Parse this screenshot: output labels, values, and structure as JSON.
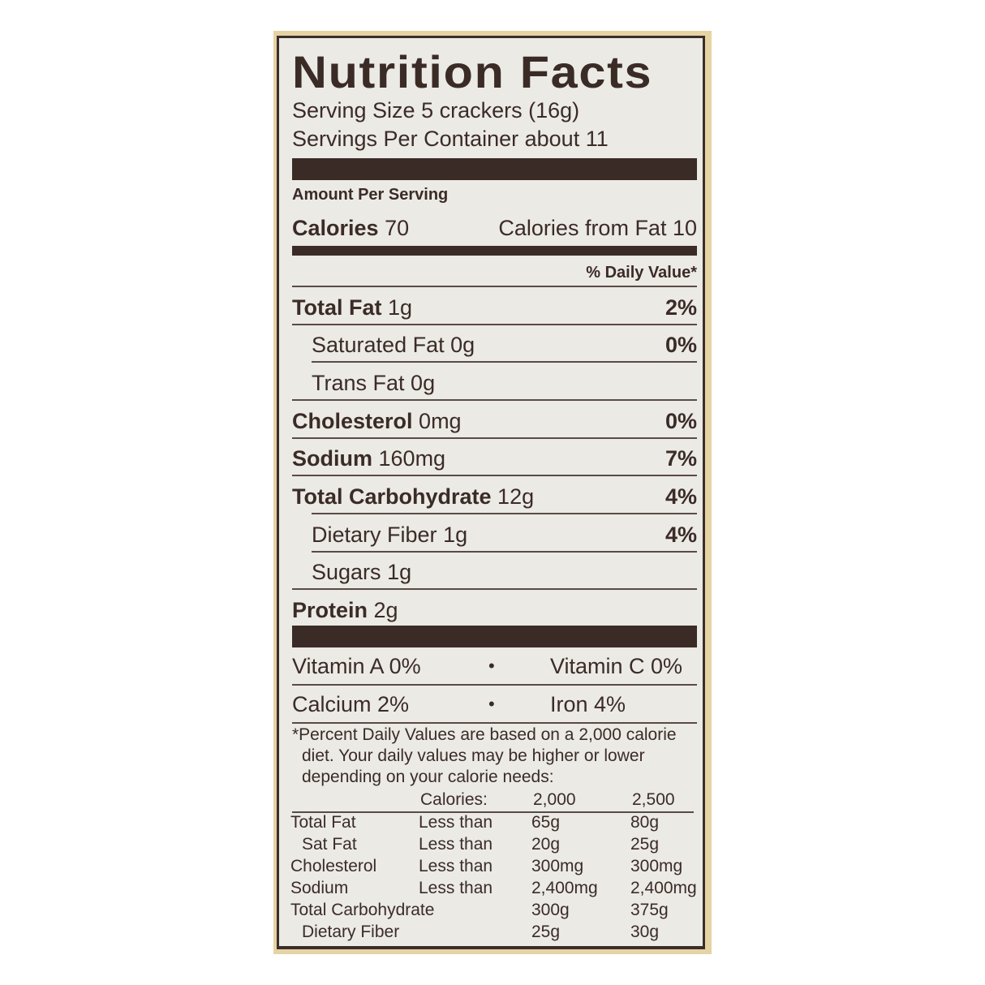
{
  "title": "Nutrition Facts",
  "serving_size": "Serving Size 5 crackers (16g)",
  "servings_per_container": "Servings Per Container about 11",
  "amount_per_serving": "Amount Per Serving",
  "calories": {
    "label": "Calories",
    "value": "70",
    "from_fat": "Calories from Fat 10"
  },
  "daily_value_header": "% Daily Value*",
  "nutrients": [
    {
      "name": "Total Fat",
      "amount": "1g",
      "dv": "2%",
      "bold": true
    },
    {
      "name": "Saturated Fat",
      "amount": "0g",
      "dv": "0%",
      "bold": false
    },
    {
      "name": "Trans Fat",
      "amount": "0g",
      "dv": "",
      "bold": false
    },
    {
      "name": "Cholesterol",
      "amount": "0mg",
      "dv": "0%",
      "bold": true
    },
    {
      "name": "Sodium",
      "amount": "160mg",
      "dv": "7%",
      "bold": true
    },
    {
      "name": "Total Carbohydrate",
      "amount": "12g",
      "dv": "4%",
      "bold": true
    },
    {
      "name": "Dietary Fiber",
      "amount": "1g",
      "dv": "4%",
      "bold": false
    },
    {
      "name": "Sugars",
      "amount": "1g",
      "dv": "",
      "bold": false
    },
    {
      "name": "Protein",
      "amount": "2g",
      "dv": "",
      "bold": true
    }
  ],
  "vitamins": [
    {
      "left": "Vitamin A 0%",
      "right": "Vitamin C 0%"
    },
    {
      "left": "Calcium 2%",
      "right": "Iron 4%"
    }
  ],
  "bullet": "•",
  "footnote": [
    "*Percent Daily Values are based on a 2,000 calorie",
    "diet. Your daily values may be higher or lower",
    "depending on your calorie needs:"
  ],
  "dv_table": {
    "header": [
      "",
      "Calories:",
      "2,000",
      "2,500"
    ],
    "rows": [
      [
        "Total Fat",
        "Less than",
        "65g",
        "80g"
      ],
      [
        " Sat Fat",
        "Less than",
        "20g",
        "25g"
      ],
      [
        "Cholesterol",
        "Less than",
        "300mg",
        "300mg"
      ],
      [
        "Sodium",
        "Less than",
        "2,400mg",
        "2,400mg"
      ],
      [
        "Total Carbohydrate",
        "",
        "300g",
        "375g"
      ],
      [
        " Dietary Fiber",
        "",
        "25g",
        "30g"
      ]
    ]
  },
  "colors": {
    "ink": "#3b2b27",
    "paper": "#ebeae5",
    "frame": "#e6d3a4"
  }
}
